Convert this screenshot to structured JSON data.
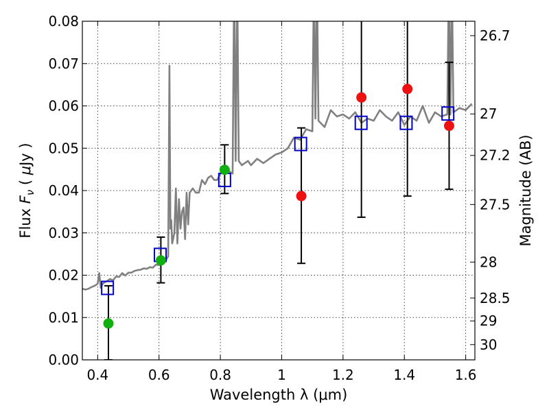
{
  "chart_data": {
    "type": "scatter",
    "xlabel": "Wavelength  λ (μm)",
    "ylabel": "Flux  F_ν  ( μJy )",
    "ylabel_parts": {
      "a": "Flux  ",
      "b": "F",
      "c": "ν",
      "d": "  ( ",
      "e": "μ",
      "f": "Jy )"
    },
    "y2label": "Magnitude (AB)",
    "xlim": [
      0.35,
      1.63
    ],
    "ylim": [
      0.0,
      0.08
    ],
    "grid": true,
    "xticks": [
      0.4,
      0.6,
      0.8,
      1.0,
      1.2,
      1.4,
      1.6
    ],
    "xtick_labels": [
      "0.4",
      "0.6",
      "0.8",
      "1",
      "1.2",
      "1.4",
      "1.6"
    ],
    "yticks": [
      0.0,
      0.01,
      0.02,
      0.03,
      0.04,
      0.05,
      0.06,
      0.07,
      0.08
    ],
    "ytick_labels": [
      "0.00",
      "0.01",
      "0.02",
      "0.03",
      "0.04",
      "0.05",
      "0.06",
      "0.07",
      "0.08"
    ],
    "y2ticks": [
      {
        "label": "26.7",
        "flux": 0.0766
      },
      {
        "label": "27",
        "flux": 0.0581
      },
      {
        "label": "27.2",
        "flux": 0.0483
      },
      {
        "label": "27.5",
        "flux": 0.0367
      },
      {
        "label": "28",
        "flux": 0.0231
      },
      {
        "label": "28.5",
        "flux": 0.0146
      },
      {
        "label": "29",
        "flux": 0.0092
      },
      {
        "label": "30",
        "flux": 0.0036
      }
    ],
    "colors": {
      "spectrum": "#808080",
      "model": "#0000cc",
      "green": "#10b010",
      "red": "#ee1111",
      "errorbar": "#000000"
    },
    "spectrum": {
      "x": [
        0.35,
        0.36,
        0.37,
        0.38,
        0.39,
        0.4,
        0.405,
        0.41,
        0.415,
        0.42,
        0.43,
        0.44,
        0.45,
        0.46,
        0.47,
        0.48,
        0.49,
        0.5,
        0.51,
        0.52,
        0.53,
        0.54,
        0.55,
        0.56,
        0.57,
        0.58,
        0.59,
        0.6,
        0.61,
        0.62,
        0.63,
        0.634,
        0.637,
        0.64,
        0.643,
        0.65,
        0.655,
        0.66,
        0.665,
        0.67,
        0.675,
        0.68,
        0.685,
        0.69,
        0.695,
        0.7,
        0.71,
        0.72,
        0.73,
        0.74,
        0.75,
        0.76,
        0.77,
        0.78,
        0.79,
        0.8,
        0.81,
        0.82,
        0.83,
        0.84,
        0.845,
        0.85,
        0.855,
        0.86,
        0.87,
        0.88,
        0.89,
        0.9,
        0.92,
        0.94,
        0.96,
        0.98,
        1.0,
        1.02,
        1.04,
        1.06,
        1.08,
        1.1,
        1.105,
        1.11,
        1.115,
        1.12,
        1.14,
        1.16,
        1.18,
        1.2,
        1.22,
        1.24,
        1.26,
        1.28,
        1.3,
        1.32,
        1.34,
        1.36,
        1.38,
        1.4,
        1.42,
        1.44,
        1.46,
        1.48,
        1.5,
        1.52,
        1.54,
        1.545,
        1.55,
        1.555,
        1.56,
        1.58,
        1.6,
        1.62
      ],
      "y": [
        0.0168,
        0.0166,
        0.0168,
        0.0172,
        0.0175,
        0.018,
        0.0205,
        0.017,
        0.0178,
        0.0182,
        0.0186,
        0.0191,
        0.0188,
        0.0197,
        0.0196,
        0.0205,
        0.0199,
        0.0206,
        0.0206,
        0.021,
        0.0212,
        0.0213,
        0.0216,
        0.0215,
        0.0219,
        0.0218,
        0.0225,
        0.0224,
        0.0229,
        0.0232,
        0.0245,
        0.0695,
        0.031,
        0.033,
        0.0275,
        0.03,
        0.0405,
        0.0275,
        0.038,
        0.031,
        0.035,
        0.036,
        0.0285,
        0.0395,
        0.032,
        0.0395,
        0.0405,
        0.0395,
        0.0395,
        0.0425,
        0.0415,
        0.043,
        0.0435,
        0.0425,
        0.0425,
        0.044,
        0.0445,
        0.045,
        0.0445,
        0.044,
        0.09,
        0.047,
        0.09,
        0.047,
        0.046,
        0.0465,
        0.047,
        0.046,
        0.0475,
        0.0465,
        0.0475,
        0.0485,
        0.049,
        0.05,
        0.0525,
        0.052,
        0.0545,
        0.054,
        0.09,
        0.057,
        0.09,
        0.0565,
        0.055,
        0.059,
        0.0575,
        0.058,
        0.057,
        0.0585,
        0.056,
        0.057,
        0.0565,
        0.059,
        0.0575,
        0.0565,
        0.0585,
        0.0555,
        0.0575,
        0.0565,
        0.06,
        0.056,
        0.0585,
        0.0575,
        0.058,
        0.09,
        0.058,
        0.09,
        0.0585,
        0.0595,
        0.059,
        0.0605
      ]
    },
    "model_points": [
      {
        "x": 0.432,
        "y": 0.017
      },
      {
        "x": 0.604,
        "y": 0.0248
      },
      {
        "x": 0.814,
        "y": 0.0425
      },
      {
        "x": 1.062,
        "y": 0.051
      },
      {
        "x": 1.259,
        "y": 0.056
      },
      {
        "x": 1.406,
        "y": 0.056
      },
      {
        "x": 1.542,
        "y": 0.0582
      }
    ],
    "green_points": [
      {
        "x": 0.435,
        "y": 0.0086
      },
      {
        "x": 0.606,
        "y": 0.0235
      },
      {
        "x": 0.814,
        "y": 0.0449
      }
    ],
    "red_points": [
      {
        "x": 1.064,
        "y": 0.0387
      },
      {
        "x": 1.26,
        "y": 0.062
      },
      {
        "x": 1.41,
        "y": 0.064
      },
      {
        "x": 1.546,
        "y": 0.0553
      }
    ],
    "errorbars": [
      {
        "x": 0.435,
        "y": 0.0086,
        "lo": 0.0,
        "hi": 0.0175
      },
      {
        "x": 0.606,
        "y": 0.0235,
        "lo": 0.0182,
        "hi": 0.029
      },
      {
        "x": 0.814,
        "y": 0.0449,
        "lo": 0.0393,
        "hi": 0.0508
      },
      {
        "x": 1.064,
        "y": 0.0387,
        "lo": 0.0228,
        "hi": 0.0548
      },
      {
        "x": 1.26,
        "y": 0.062,
        "lo": 0.0337,
        "hi": 0.085
      },
      {
        "x": 1.41,
        "y": 0.064,
        "lo": 0.0387,
        "hi": 0.085
      },
      {
        "x": 1.546,
        "y": 0.0553,
        "lo": 0.0403,
        "hi": 0.0703
      }
    ]
  }
}
